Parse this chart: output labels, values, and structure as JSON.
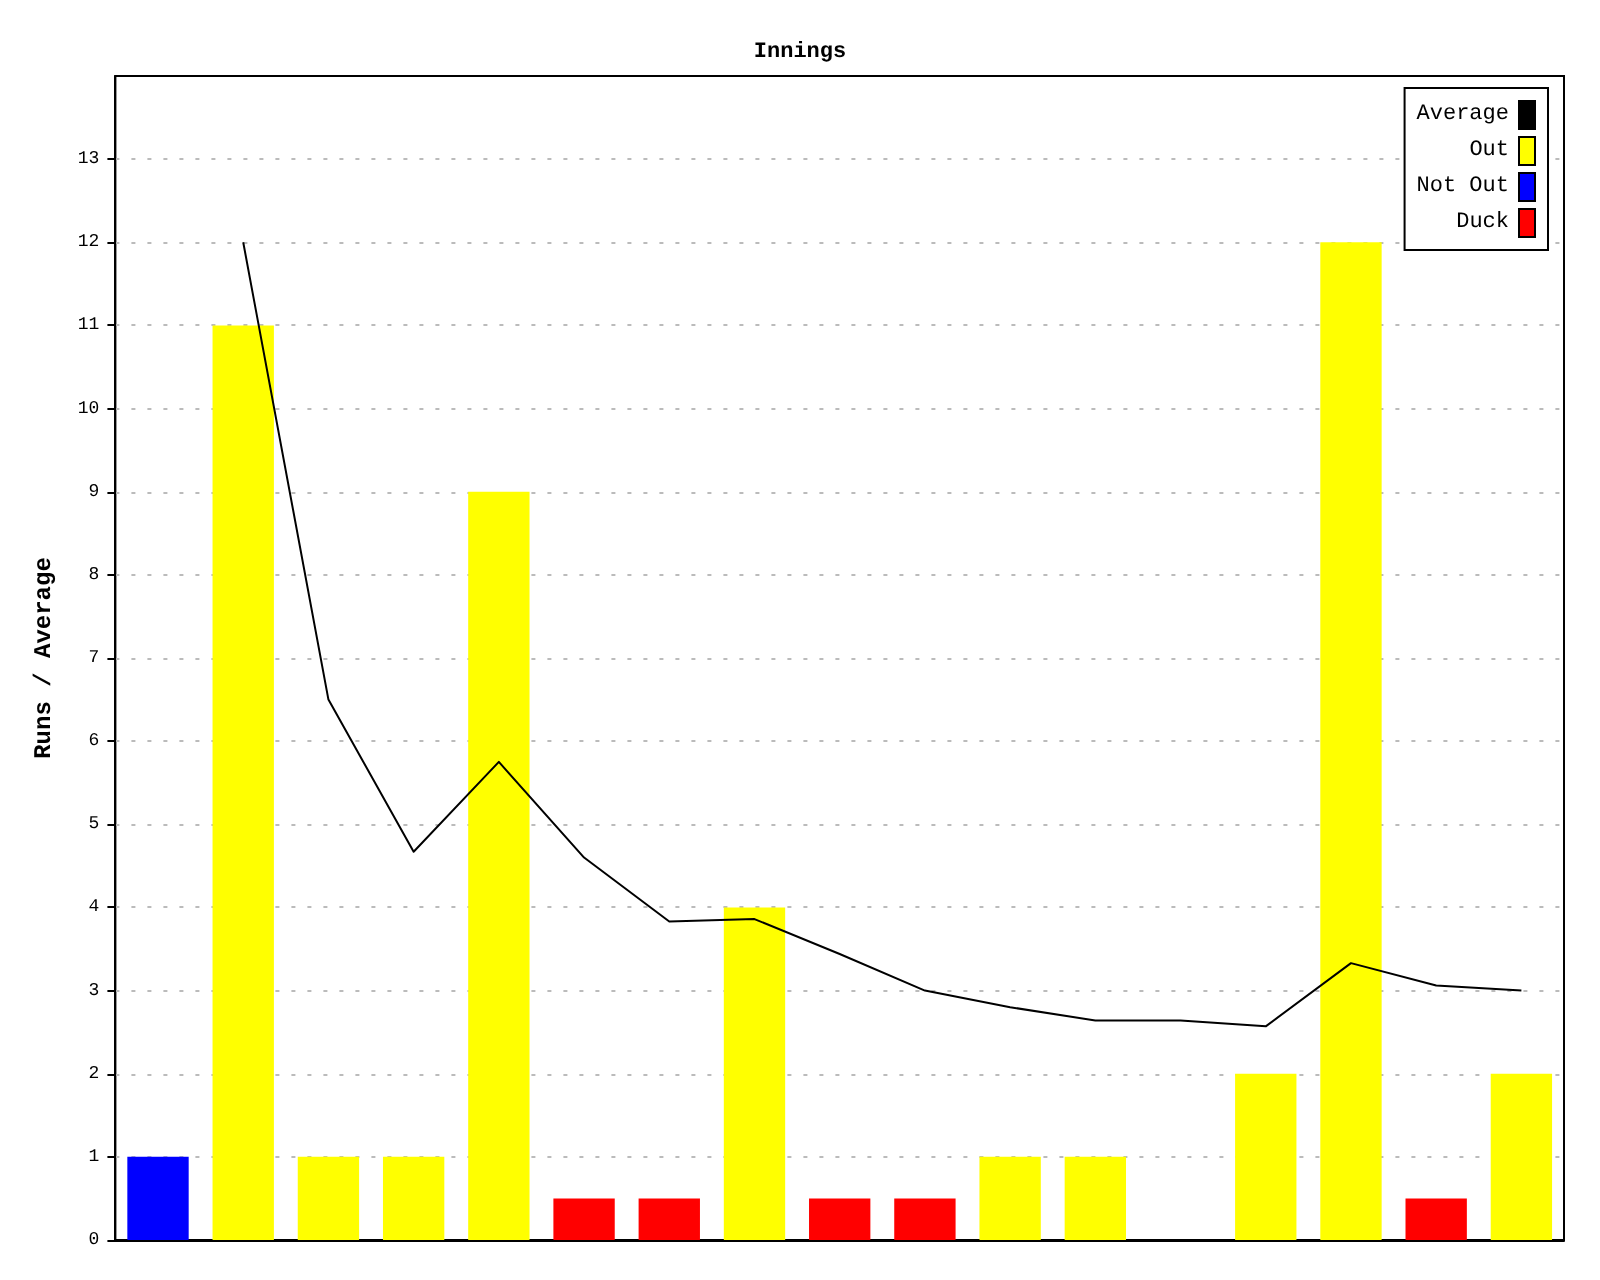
{
  "chart_data": {
    "type": "bar",
    "title": "Innings",
    "ylabel": "Runs / Average",
    "categories": [
      null,
      null,
      null,
      null,
      null,
      null,
      null,
      null,
      null,
      null,
      null,
      null,
      null,
      null,
      null,
      null,
      null
    ],
    "series": [
      {
        "name": "Average",
        "type": "line",
        "color": "#000000",
        "values": [
          null,
          12,
          6.5,
          4.67,
          5.75,
          4.6,
          3.83,
          3.86,
          3.44,
          3.0,
          2.8,
          2.64,
          2.64,
          2.57,
          3.33,
          3.06,
          3.0
        ]
      },
      {
        "name": "Out",
        "color": "#ffff00",
        "values": [
          null,
          11,
          1,
          1,
          9,
          null,
          null,
          4,
          null,
          null,
          1,
          1,
          null,
          2,
          12,
          null,
          2
        ]
      },
      {
        "name": "Not Out",
        "color": "#0000ff",
        "values": [
          1,
          null,
          null,
          null,
          null,
          null,
          null,
          null,
          null,
          null,
          null,
          null,
          null,
          null,
          null,
          null,
          null
        ]
      },
      {
        "name": "Duck",
        "color": "#ff0000",
        "values": [
          null,
          null,
          null,
          null,
          null,
          0.5,
          0.5,
          null,
          0.5,
          0.5,
          null,
          null,
          null,
          null,
          null,
          0.5,
          null
        ]
      }
    ],
    "stacked": true,
    "ylim": [
      0,
      14
    ],
    "yticks": [
      0,
      1,
      2,
      3,
      4,
      5,
      6,
      7,
      8,
      9,
      10,
      11,
      12,
      13
    ],
    "grid": "y",
    "legend": "top right",
    "tick_labels": "y",
    "marker": "none",
    "line_style": "solid"
  }
}
